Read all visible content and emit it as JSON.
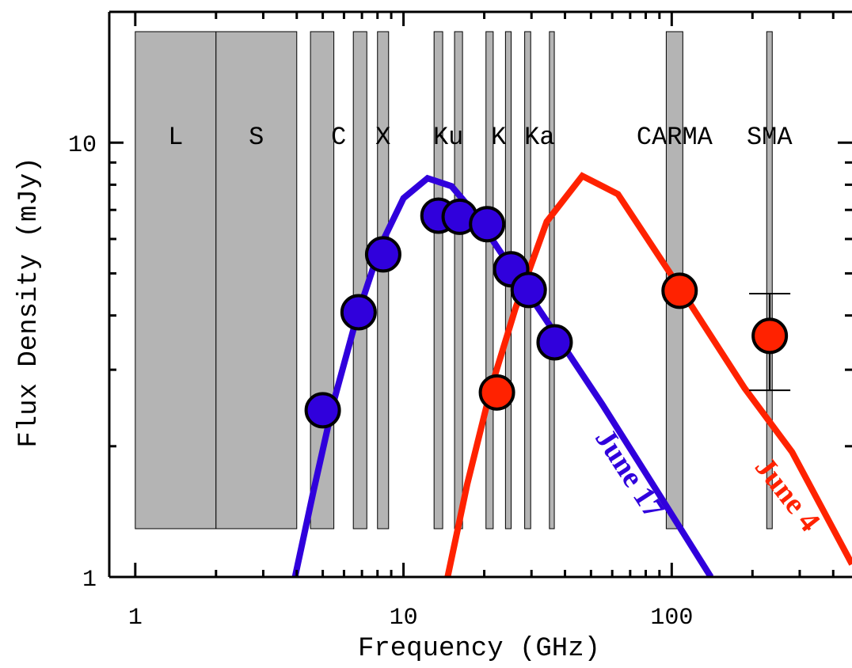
{
  "chart_data": {
    "type": "scatter",
    "xlabel": "Frequency (GHz)",
    "ylabel": "Flux Density (mJy)",
    "xlog": true,
    "ylog": true,
    "xlim": [
      0.8,
      470
    ],
    "ylim": [
      1,
      20
    ],
    "xticks": [
      1,
      10,
      100
    ],
    "xminorticks": [
      2,
      3,
      4,
      5,
      6,
      7,
      8,
      9,
      20,
      30,
      40,
      50,
      60,
      70,
      80,
      90,
      200,
      300,
      400
    ],
    "yticks": [
      1,
      10
    ],
    "yminorticks": [
      2,
      3,
      4,
      5,
      6,
      7,
      8,
      9,
      20
    ],
    "bands": [
      {
        "label": "L",
        "ranges": [
          [
            1,
            2
          ]
        ]
      },
      {
        "label": "S",
        "ranges": [
          [
            2,
            4
          ]
        ]
      },
      {
        "label": "C",
        "ranges": [
          [
            4.5,
            5.5
          ],
          [
            6.5,
            7.3
          ]
        ]
      },
      {
        "label": "X",
        "ranges": [
          [
            8.0,
            8.8
          ]
        ]
      },
      {
        "label": "Ku",
        "ranges": [
          [
            13.0,
            14.0
          ],
          [
            15.5,
            16.6
          ]
        ]
      },
      {
        "label": "K",
        "ranges": [
          [
            20.3,
            21.6
          ],
          [
            24.0,
            25.2
          ]
        ]
      },
      {
        "label": "Ka",
        "ranges": [
          [
            28.3,
            29.8
          ],
          [
            35.0,
            36.5
          ]
        ]
      },
      {
        "label": "CARMA",
        "ranges": [
          [
            95.4,
            110
          ]
        ]
      },
      {
        "label": "SMA",
        "ranges": [
          [
            226,
            237
          ]
        ]
      }
    ],
    "series": [
      {
        "name": "June 17",
        "color": "#3000dc",
        "x": [
          5.0,
          6.8,
          8.4,
          13.5,
          16.2,
          20.5,
          25.2,
          29.3,
          36.6
        ],
        "values": [
          2.42,
          4.07,
          5.53,
          6.79,
          6.75,
          6.49,
          5.11,
          4.58,
          3.47
        ],
        "errors": [
          null,
          null,
          null,
          null,
          null,
          null,
          null,
          null,
          null
        ],
        "model_x": [
          3.94,
          4.61,
          5.46,
          6.7,
          8.21,
          10.0,
          12.3,
          15.1,
          18.5,
          24.3,
          36.6,
          55.0,
          88.5,
          140
        ],
        "model_y": [
          1.0,
          1.57,
          2.5,
          3.97,
          5.79,
          7.45,
          8.28,
          7.94,
          6.85,
          5.32,
          3.65,
          2.5,
          1.57,
          1.0
        ]
      },
      {
        "name": "June 4",
        "color": "#ff2200",
        "x": [
          22.3,
          107,
          232
        ],
        "values": [
          2.66,
          4.56,
          3.59
        ],
        "errors": [
          null,
          null,
          0.9
        ],
        "model_x": [
          14.6,
          17.3,
          21.2,
          26.1,
          34.2,
          46.4,
          63.0,
          108,
          187,
          281,
          470
        ],
        "model_y": [
          1.0,
          1.64,
          2.72,
          4.14,
          6.58,
          8.38,
          7.61,
          4.6,
          2.72,
          1.94,
          1.07
        ]
      }
    ]
  }
}
